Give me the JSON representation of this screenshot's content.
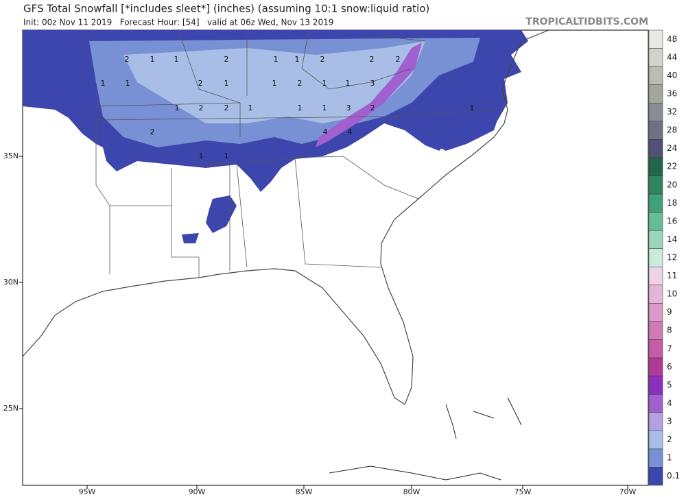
{
  "header": {
    "title": "GFS Total Snowfall [*includes sleet*] (inches) (assuming 10:1 snow:liquid ratio)",
    "subtitle": "Init: 00z Nov 11 2019   Forecast Hour: [54]   valid at 06z Wed, Nov 13 2019",
    "site": "TROPICALTIDBITS.COM"
  },
  "map": {
    "lon_labels": [
      "95W",
      "90W",
      "85W",
      "80W",
      "75W",
      "70W"
    ],
    "lat_labels": [
      "35N",
      "30N",
      "25N"
    ],
    "contour_labels": [
      "2",
      "1",
      "1",
      "2",
      "1",
      "1",
      "2",
      "2",
      "2",
      "1",
      "1",
      "2",
      "1",
      "1",
      "2",
      "1",
      "1",
      "3",
      "1",
      "2",
      "2",
      "1",
      "1",
      "1",
      "3",
      "2",
      "1",
      "2",
      "4",
      "4",
      "1",
      "1"
    ]
  },
  "legend": [
    {
      "label": "48",
      "color": "#e8e8e4"
    },
    {
      "label": "44",
      "color": "#d2d4cc"
    },
    {
      "label": "40",
      "color": "#babdb2"
    },
    {
      "label": "36",
      "color": "#a3a69d"
    },
    {
      "label": "32",
      "color": "#8a8c95"
    },
    {
      "label": "28",
      "color": "#6f7184"
    },
    {
      "label": "24",
      "color": "#4f5275"
    },
    {
      "label": "22",
      "color": "#21674a"
    },
    {
      "label": "20",
      "color": "#2f8560"
    },
    {
      "label": "18",
      "color": "#40a077"
    },
    {
      "label": "16",
      "color": "#66bd95"
    },
    {
      "label": "14",
      "color": "#9ad6bb"
    },
    {
      "label": "12",
      "color": "#c8ebdc"
    },
    {
      "label": "11",
      "color": "#f0d2e6"
    },
    {
      "label": "10",
      "color": "#e6b4d4"
    },
    {
      "label": "9",
      "color": "#dc98c6"
    },
    {
      "label": "8",
      "color": "#d07ab6"
    },
    {
      "label": "7",
      "color": "#c45ca6"
    },
    {
      "label": "6",
      "color": "#b03a96"
    },
    {
      "label": "5",
      "color": "#8c2ec0"
    },
    {
      "label": "4",
      "color": "#a060d0"
    },
    {
      "label": "3",
      "color": "#b4a0e0"
    },
    {
      "label": "2",
      "color": "#a8bee6"
    },
    {
      "label": "1",
      "color": "#7890d4"
    },
    {
      "label": "0.1",
      "color": "#3c46ac"
    }
  ]
}
